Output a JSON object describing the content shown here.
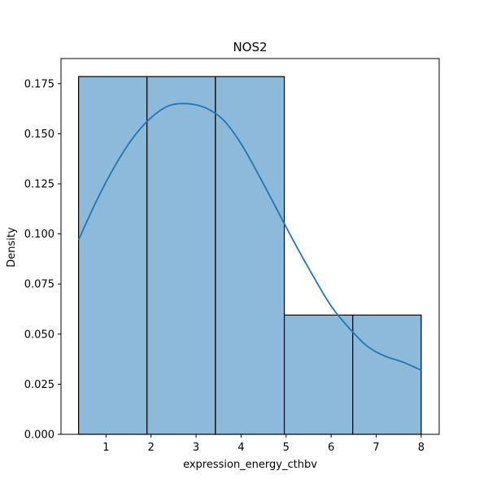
{
  "chart_data": {
    "type": "histogram",
    "title": "NOS2",
    "xlabel": "expression_energy_cthbv",
    "ylabel": "Density",
    "xlim": [
      0.0,
      8.4
    ],
    "ylim": [
      0.0,
      0.1875
    ],
    "xticks": [
      1,
      2,
      3,
      4,
      5,
      6,
      7,
      8
    ],
    "yticks": [
      0.0,
      0.025,
      0.05,
      0.075,
      0.1,
      0.125,
      0.15,
      0.175
    ],
    "ytick_labels": [
      "0.000",
      "0.025",
      "0.050",
      "0.075",
      "0.100",
      "0.125",
      "0.150",
      "0.175"
    ],
    "bins": [
      {
        "x0": 0.39,
        "x1": 1.91,
        "density": 0.1785
      },
      {
        "x0": 1.91,
        "x1": 3.43,
        "density": 0.1785
      },
      {
        "x0": 3.43,
        "x1": 4.96,
        "density": 0.1785
      },
      {
        "x0": 4.96,
        "x1": 6.48,
        "density": 0.0595
      },
      {
        "x0": 6.48,
        "x1": 8.0,
        "density": 0.0595
      }
    ],
    "kde": {
      "x": [
        0.39,
        0.8,
        1.2,
        1.6,
        2.0,
        2.4,
        2.8,
        3.2,
        3.6,
        4.0,
        4.4,
        4.8,
        5.2,
        5.6,
        6.0,
        6.4,
        6.8,
        7.2,
        7.6,
        8.0
      ],
      "y": [
        0.097,
        0.117,
        0.134,
        0.148,
        0.158,
        0.164,
        0.165,
        0.163,
        0.157,
        0.145,
        0.129,
        0.112,
        0.095,
        0.079,
        0.064,
        0.053,
        0.044,
        0.039,
        0.036,
        0.032
      ]
    },
    "bar_color": "#8db9da",
    "bar_edge_color": "#000000",
    "line_color": "#1f77b4",
    "grid": false,
    "legend": false
  }
}
